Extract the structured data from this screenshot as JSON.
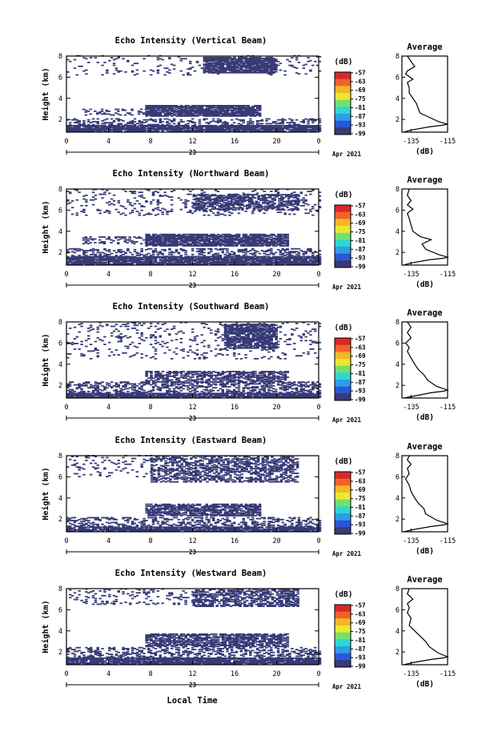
{
  "figure": {
    "xlabel": "Local Time",
    "date_label": "Apr 2021",
    "day_label": "23"
  },
  "chart_data": [
    {
      "type": "heatmap",
      "title": "Echo Intensity (Vertical Beam)",
      "ylabel": "Height (km)",
      "xticks": [
        "0",
        "4",
        "8",
        "12",
        "16",
        "20",
        "0"
      ],
      "yticks": [
        "2",
        "4",
        "6",
        "8"
      ],
      "xlim": [
        0,
        24
      ],
      "ylim": [
        0.8,
        8
      ],
      "colorbar": {
        "unit": "(dB)",
        "ticks": [
          "-57",
          "-63",
          "-69",
          "-75",
          "-81",
          "-87",
          "-93",
          "-99"
        ]
      },
      "profile": {
        "title": "Average",
        "xlabel": "(dB)",
        "xticks": [
          "-135",
          "-115"
        ],
        "yticks": [
          "2",
          "4",
          "6",
          "8"
        ]
      },
      "layers": [
        {
          "t0": 0,
          "t1": 24,
          "h0": 0.85,
          "h1": 1.4,
          "density": 0.92
        },
        {
          "t0": 0,
          "t1": 24,
          "h0": 1.4,
          "h1": 2.1,
          "density": 0.3
        },
        {
          "t0": 7.5,
          "t1": 18.5,
          "h0": 2.3,
          "h1": 3.3,
          "density": 0.85
        },
        {
          "t0": 1.5,
          "t1": 7.5,
          "h0": 2.4,
          "h1": 3.0,
          "density": 0.25
        },
        {
          "t0": 13,
          "t1": 20,
          "h0": 6.4,
          "h1": 7.9,
          "density": 0.85
        },
        {
          "t0": 0,
          "t1": 24,
          "h0": 6.2,
          "h1": 8.0,
          "density": 0.08
        }
      ],
      "avg_profile": [
        [
          -139,
          0.8
        ],
        [
          -135,
          1.0
        ],
        [
          -125,
          1.3
        ],
        [
          -118,
          1.45
        ],
        [
          -115,
          1.55
        ],
        [
          -120,
          1.8
        ],
        [
          -125,
          2.2
        ],
        [
          -130,
          2.6
        ],
        [
          -131,
          3.0
        ],
        [
          -132,
          3.5
        ],
        [
          -134,
          4.0
        ],
        [
          -136,
          4.5
        ],
        [
          -136,
          5.0
        ],
        [
          -137,
          5.5
        ],
        [
          -134,
          5.8
        ],
        [
          -138,
          6.3
        ],
        [
          -137,
          6.6
        ],
        [
          -133,
          7.0
        ],
        [
          -135,
          7.5
        ],
        [
          -137,
          8.0
        ]
      ]
    },
    {
      "type": "heatmap",
      "title": "Echo Intensity (Northward Beam)",
      "ylabel": "Height (km)",
      "xticks": [
        "0",
        "4",
        "8",
        "12",
        "16",
        "20",
        "0"
      ],
      "yticks": [
        "2",
        "4",
        "6",
        "8"
      ],
      "xlim": [
        0,
        24
      ],
      "ylim": [
        0.8,
        8
      ],
      "colorbar": {
        "unit": "(dB)",
        "ticks": [
          "-57",
          "-63",
          "-69",
          "-75",
          "-81",
          "-87",
          "-93",
          "-99"
        ]
      },
      "profile": {
        "title": "Average",
        "xlabel": "(dB)",
        "xticks": [
          "-135",
          "-115"
        ],
        "yticks": [
          "2",
          "4",
          "6",
          "8"
        ]
      },
      "layers": [
        {
          "t0": 0,
          "t1": 24,
          "h0": 0.85,
          "h1": 1.6,
          "density": 0.9
        },
        {
          "t0": 0,
          "t1": 24,
          "h0": 1.6,
          "h1": 2.4,
          "density": 0.35
        },
        {
          "t0": 7.5,
          "t1": 21,
          "h0": 2.6,
          "h1": 3.7,
          "density": 0.85
        },
        {
          "t0": 1.5,
          "t1": 7.5,
          "h0": 2.8,
          "h1": 3.5,
          "density": 0.25
        },
        {
          "t0": 12,
          "t1": 22,
          "h0": 6.0,
          "h1": 7.5,
          "density": 0.55
        },
        {
          "t0": 0,
          "t1": 24,
          "h0": 5.5,
          "h1": 8.0,
          "density": 0.12
        }
      ],
      "avg_profile": [
        [
          -139,
          0.8
        ],
        [
          -135,
          1.0
        ],
        [
          -125,
          1.3
        ],
        [
          -117,
          1.45
        ],
        [
          -115,
          1.55
        ],
        [
          -120,
          1.8
        ],
        [
          -127,
          2.3
        ],
        [
          -129,
          2.8
        ],
        [
          -124,
          3.2
        ],
        [
          -130,
          3.5
        ],
        [
          -134,
          4.0
        ],
        [
          -135,
          4.6
        ],
        [
          -136,
          5.2
        ],
        [
          -137,
          5.7
        ],
        [
          -134,
          6.1
        ],
        [
          -137,
          6.5
        ],
        [
          -135,
          6.9
        ],
        [
          -137,
          7.4
        ],
        [
          -136,
          8.0
        ]
      ]
    },
    {
      "type": "heatmap",
      "title": "Echo Intensity (Southward Beam)",
      "ylabel": "Height (km)",
      "xticks": [
        "0",
        "4",
        "8",
        "12",
        "16",
        "20",
        "0"
      ],
      "yticks": [
        "2",
        "4",
        "6",
        "8"
      ],
      "xlim": [
        0,
        24
      ],
      "ylim": [
        0.8,
        8
      ],
      "colorbar": {
        "unit": "(dB)",
        "ticks": [
          "-57",
          "-63",
          "-69",
          "-75",
          "-81",
          "-87",
          "-93",
          "-99"
        ]
      },
      "profile": {
        "title": "Average",
        "xlabel": "(dB)",
        "xticks": [
          "-135",
          "-115"
        ],
        "yticks": [
          "2",
          "4",
          "6",
          "8"
        ]
      },
      "layers": [
        {
          "t0": 0,
          "t1": 24,
          "h0": 0.85,
          "h1": 1.3,
          "density": 0.92
        },
        {
          "t0": 0,
          "t1": 24,
          "h0": 1.3,
          "h1": 2.3,
          "density": 0.4
        },
        {
          "t0": 7.5,
          "t1": 21,
          "h0": 2.3,
          "h1": 3.3,
          "density": 0.6
        },
        {
          "t0": 15,
          "t1": 20,
          "h0": 5.5,
          "h1": 7.8,
          "density": 0.75
        },
        {
          "t0": 0,
          "t1": 24,
          "h0": 4.5,
          "h1": 8.0,
          "density": 0.1
        }
      ],
      "avg_profile": [
        [
          -139,
          0.8
        ],
        [
          -133,
          1.0
        ],
        [
          -124,
          1.3
        ],
        [
          -117,
          1.45
        ],
        [
          -115,
          1.55
        ],
        [
          -121,
          1.9
        ],
        [
          -126,
          2.5
        ],
        [
          -128,
          3.0
        ],
        [
          -131,
          3.5
        ],
        [
          -133,
          4.0
        ],
        [
          -135,
          4.6
        ],
        [
          -137,
          5.2
        ],
        [
          -136,
          5.6
        ],
        [
          -138,
          6.0
        ],
        [
          -135,
          6.5
        ],
        [
          -137,
          7.0
        ],
        [
          -135,
          7.5
        ],
        [
          -137,
          8.0
        ]
      ]
    },
    {
      "type": "heatmap",
      "title": "Echo Intensity (Eastward Beam)",
      "ylabel": "Height (km)",
      "xticks": [
        "0",
        "4",
        "8",
        "12",
        "16",
        "20",
        "0"
      ],
      "yticks": [
        "2",
        "4",
        "6",
        "8"
      ],
      "xlim": [
        0,
        24
      ],
      "ylim": [
        0.8,
        8
      ],
      "colorbar": {
        "unit": "(dB)",
        "ticks": [
          "-57",
          "-63",
          "-69",
          "-75",
          "-81",
          "-87",
          "-93",
          "-99"
        ]
      },
      "profile": {
        "title": "Average",
        "xlabel": "(dB)",
        "xticks": [
          "-135",
          "-115"
        ],
        "yticks": [
          "2",
          "4",
          "6",
          "8"
        ]
      },
      "layers": [
        {
          "t0": 0,
          "t1": 24,
          "h0": 0.85,
          "h1": 1.3,
          "density": 0.9
        },
        {
          "t0": 0,
          "t1": 24,
          "h0": 1.3,
          "h1": 2.2,
          "density": 0.35
        },
        {
          "t0": 7.5,
          "t1": 18.5,
          "h0": 2.3,
          "h1": 3.4,
          "density": 0.75
        },
        {
          "t0": 8,
          "t1": 22,
          "h0": 5.5,
          "h1": 8.0,
          "density": 0.5
        },
        {
          "t0": 0,
          "t1": 8,
          "h0": 6.0,
          "h1": 8.0,
          "density": 0.12
        }
      ],
      "avg_profile": [
        [
          -139,
          0.8
        ],
        [
          -134,
          1.0
        ],
        [
          -124,
          1.3
        ],
        [
          -117,
          1.45
        ],
        [
          -115,
          1.55
        ],
        [
          -121,
          1.9
        ],
        [
          -127,
          2.5
        ],
        [
          -128,
          3.0
        ],
        [
          -131,
          3.5
        ],
        [
          -133,
          4.0
        ],
        [
          -135,
          4.6
        ],
        [
          -136,
          5.2
        ],
        [
          -138,
          5.8
        ],
        [
          -136,
          6.3
        ],
        [
          -137,
          6.8
        ],
        [
          -135,
          7.2
        ],
        [
          -137,
          7.6
        ],
        [
          -136,
          8.0
        ]
      ]
    },
    {
      "type": "heatmap",
      "title": "Echo Intensity (Westward Beam)",
      "ylabel": "Height (km)",
      "xticks": [
        "0",
        "4",
        "8",
        "12",
        "16",
        "20",
        "0"
      ],
      "yticks": [
        "2",
        "4",
        "6",
        "8"
      ],
      "xlim": [
        0,
        24
      ],
      "ylim": [
        0.8,
        8
      ],
      "colorbar": {
        "unit": "(dB)",
        "ticks": [
          "-57",
          "-63",
          "-69",
          "-75",
          "-81",
          "-87",
          "-93",
          "-99"
        ]
      },
      "profile": {
        "title": "Average",
        "xlabel": "(dB)",
        "xticks": [
          "-135",
          "-115"
        ],
        "yticks": [
          "2",
          "4",
          "6",
          "8"
        ]
      },
      "layers": [
        {
          "t0": 0,
          "t1": 24,
          "h0": 0.85,
          "h1": 1.4,
          "density": 0.9
        },
        {
          "t0": 0,
          "t1": 24,
          "h0": 1.4,
          "h1": 2.4,
          "density": 0.35
        },
        {
          "t0": 7.5,
          "t1": 21,
          "h0": 2.5,
          "h1": 3.7,
          "density": 0.7
        },
        {
          "t0": 12,
          "t1": 22,
          "h0": 6.3,
          "h1": 8.0,
          "density": 0.55
        },
        {
          "t0": 0,
          "t1": 12,
          "h0": 6.5,
          "h1": 8.0,
          "density": 0.15
        }
      ],
      "avg_profile": [
        [
          -139,
          0.8
        ],
        [
          -134,
          1.0
        ],
        [
          -124,
          1.3
        ],
        [
          -117,
          1.45
        ],
        [
          -115,
          1.55
        ],
        [
          -120,
          1.9
        ],
        [
          -125,
          2.5
        ],
        [
          -127,
          3.0
        ],
        [
          -130,
          3.5
        ],
        [
          -133,
          4.0
        ],
        [
          -136,
          4.5
        ],
        [
          -135,
          5.2
        ],
        [
          -137,
          5.7
        ],
        [
          -136,
          6.2
        ],
        [
          -137,
          6.6
        ],
        [
          -134,
          7.0
        ],
        [
          -137,
          7.5
        ],
        [
          -136,
          8.0
        ]
      ]
    }
  ]
}
